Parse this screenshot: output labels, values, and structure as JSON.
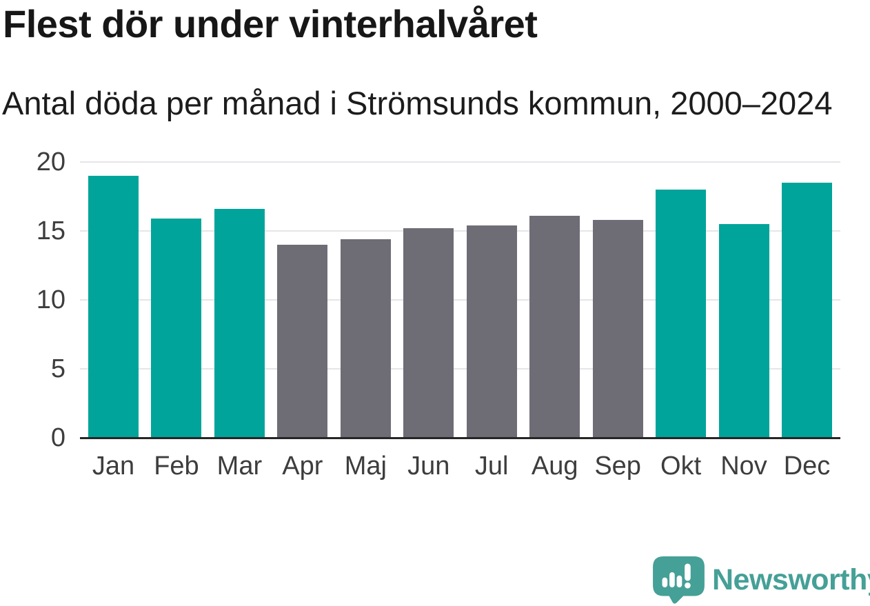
{
  "title": "Flest dör under vinterhalvåret",
  "subtitle": "Antal döda per månad i Strömsunds kommun, 2000–2024",
  "chart_data": {
    "type": "bar",
    "title": "Flest dör under vinterhalvåret",
    "subtitle": "Antal döda per månad i Strömsunds kommun, 2000–2024",
    "categories": [
      "Jan",
      "Feb",
      "Mar",
      "Apr",
      "Maj",
      "Jun",
      "Jul",
      "Aug",
      "Sep",
      "Okt",
      "Nov",
      "Dec"
    ],
    "values": [
      19.0,
      15.9,
      16.6,
      14.0,
      14.4,
      15.2,
      15.4,
      16.1,
      15.8,
      18.0,
      15.5,
      18.5
    ],
    "bar_colors": [
      "teal",
      "teal",
      "teal",
      "gray",
      "gray",
      "gray",
      "gray",
      "gray",
      "gray",
      "teal",
      "teal",
      "teal"
    ],
    "xlabel": "",
    "ylabel": "",
    "ylim": [
      0,
      20
    ],
    "yticks": [
      0,
      5,
      10,
      15,
      20
    ],
    "grid": "horizontal",
    "legend": "none"
  },
  "colors": {
    "background": "#ffffff",
    "teal_bar": "#00a49a",
    "gray_bar": "#6e6c74",
    "title_text": "#171717",
    "subtitle_text": "#1c1c1c",
    "axis_text": "#3d3d3d",
    "gridline": "#e6e4e7",
    "axis_line": "#262626",
    "logo": "#45a097"
  },
  "branding": {
    "name": "Newsworthy"
  }
}
